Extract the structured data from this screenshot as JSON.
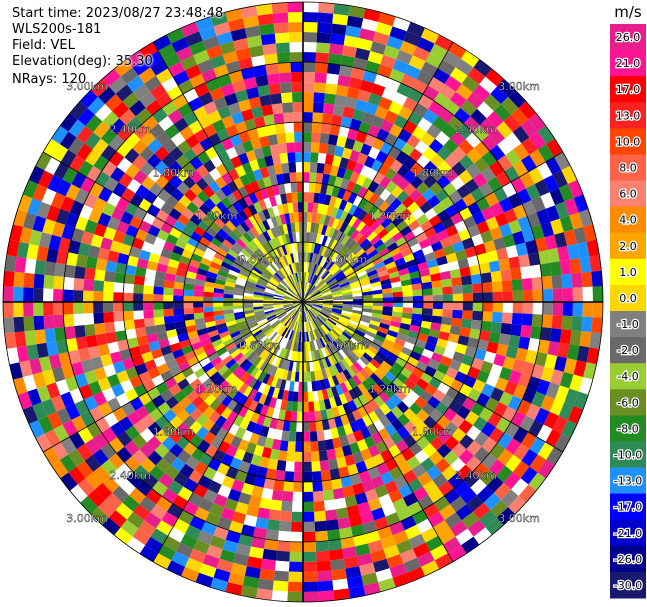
{
  "header": {
    "start_time": "Start time: 2023/08/27 23:48:48",
    "instrument": "WLS200s-181",
    "field": "Field: VEL",
    "elevation": "Elevation(deg): 35.30",
    "nrays": "NRays: 120"
  },
  "colorbar": {
    "unit": "m/s",
    "ticks": [
      "26.0",
      "21.0",
      "17.0",
      "13.0",
      "10.0",
      "8.0",
      "6.0",
      "4.0",
      "2.0",
      "1.0",
      "0.0",
      "-1.0",
      "-2.0",
      "-4.0",
      "-6.0",
      "-8.0",
      "-10.0",
      "-13.0",
      "-17.0",
      "-21.0",
      "-26.0",
      "-30.0"
    ],
    "colors": [
      "#e81e8c",
      "#ff1493",
      "#ff0000",
      "#ff2020",
      "#ff4500",
      "#ff6347",
      "#fa8072",
      "#ff8c00",
      "#ffa500",
      "#ffff00",
      "#ffd700",
      "#808080",
      "#696969",
      "#9acd32",
      "#6b8e23",
      "#228b22",
      "#2e8b57",
      "#1e90ff",
      "#0000ff",
      "#0000cd",
      "#00008b",
      "#191970"
    ]
  },
  "chart_data": {
    "type": "heatmap",
    "subtype": "polar PPI scan",
    "field": "VEL",
    "units": "m/s",
    "nrays": 120,
    "range_rings": [
      "0.60km",
      "1.20km",
      "1.80km",
      "2.40km",
      "3.00km"
    ],
    "value_range": [
      -30.0,
      26.0
    ],
    "near_center_character": "mixed low velocities (yellow/green/grey)",
    "far_range_character": "noise across full color scale"
  }
}
